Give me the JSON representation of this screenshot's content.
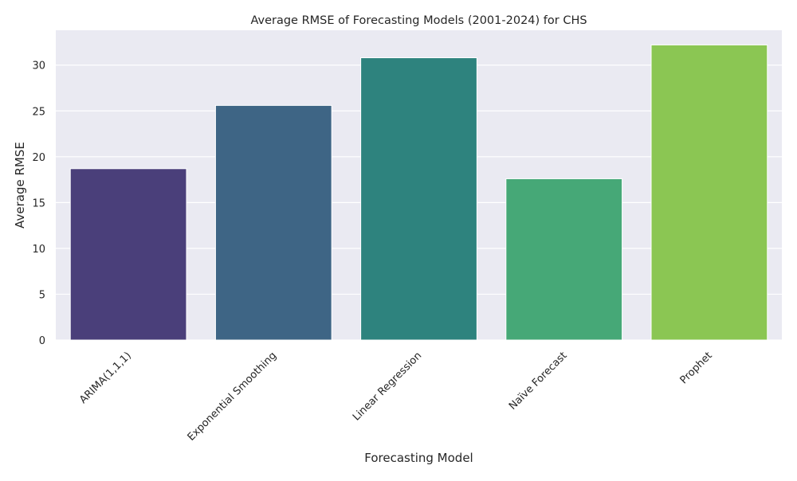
{
  "chart_data": {
    "type": "bar",
    "title": "Average RMSE of Forecasting Models (2001-2024) for CHS",
    "xlabel": "Forecasting Model",
    "ylabel": "Average RMSE",
    "categories": [
      "ARIMA(1,1,1)",
      "Exponential Smoothing",
      "Linear Regression",
      "Naïve Forecast",
      "Prophet"
    ],
    "values": [
      18.7,
      25.6,
      30.8,
      17.6,
      32.2
    ],
    "colors": [
      "#4a3f7a",
      "#3e6585",
      "#2e837e",
      "#46a877",
      "#8bc653"
    ],
    "ylim": [
      0,
      33.8
    ],
    "yticks": [
      0,
      5,
      10,
      15,
      20,
      25,
      30
    ],
    "ytick_labels": [
      "0",
      "5",
      "10",
      "15",
      "20",
      "25",
      "30"
    ],
    "xtick_rotation": 45,
    "grid": true,
    "background": "#eaeaf2"
  }
}
